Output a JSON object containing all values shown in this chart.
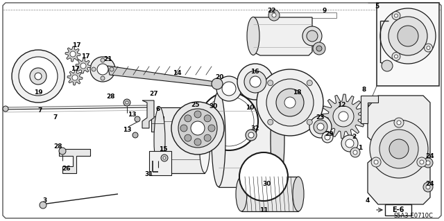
{
  "figsize": [
    6.4,
    3.19
  ],
  "dpi": 100,
  "bg_color": "#ffffff",
  "line_color": "#1a1a1a",
  "diagram_code": "S5A3-E0710C",
  "page_code": "E-6",
  "border_color": "#333333"
}
